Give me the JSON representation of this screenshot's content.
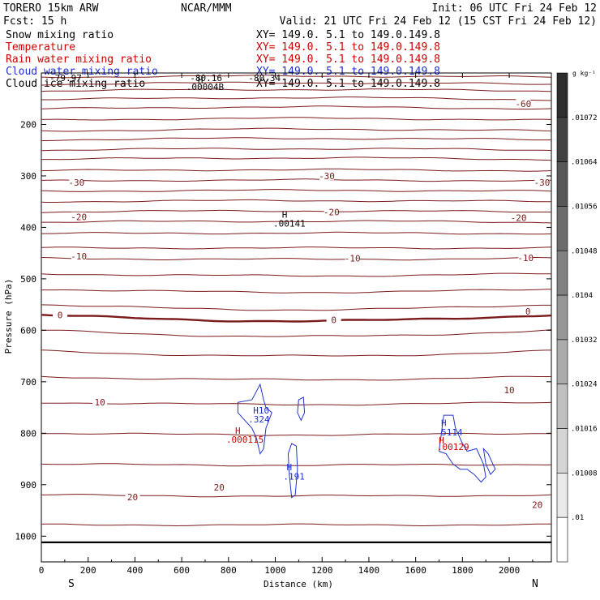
{
  "header": {
    "model": "TORERO  15km ARW",
    "org": "NCAR/MMM",
    "init": "Init: 06 UTC Fri 24 Feb 12",
    "fcst": "Fcst:   15 h",
    "valid": "Valid: 21 UTC Fri 24 Feb 12 (15 CST Fri 24 Feb 12)"
  },
  "fields": [
    {
      "name": "Snow mixing ratio",
      "xy": "XY= 149.0.  5.1 to 149.0.149.8",
      "color": "#000000"
    },
    {
      "name": "Temperature",
      "xy": "XY= 149.0.  5.1 to 149.0.149.8",
      "color": "#cc0000"
    },
    {
      "name": "Rain water mixing ratio",
      "xy": "XY= 149.0.  5.1 to 149.0.149.8",
      "color": "#cc0000"
    },
    {
      "name": "Cloud water mixing ratio",
      "xy": "XY= 149.0.  5.1 to 149.0.149.8",
      "color": "#1f2fd0"
    },
    {
      "name": "Cloud ice mixing ratio",
      "xy": "XY= 149.0.  5.1 to 149.0.149.8",
      "color": "#000000"
    }
  ],
  "chart_data": {
    "type": "cross-section contour",
    "xlabel": "Distance (km)",
    "ylabel": "Pressure (hPa)",
    "xlim": [
      0,
      2180
    ],
    "ylim": [
      1050,
      100
    ],
    "x_ticks": [
      0,
      200,
      400,
      600,
      800,
      1000,
      1200,
      1400,
      1600,
      1800,
      2000
    ],
    "y_ticks": [
      200,
      300,
      400,
      500,
      600,
      700,
      800,
      900,
      1000
    ],
    "direction_labels": {
      "left": "S",
      "right": "N"
    },
    "surface_pressure": 1012,
    "temperature_contours": [
      {
        "p0": 108,
        "amp": -2,
        "label": ""
      },
      {
        "p0": 122,
        "amp": -3,
        "label": ""
      },
      {
        "p0": 135,
        "amp": -3,
        "label": ""
      },
      {
        "p0": 152,
        "amp": -4,
        "label": ""
      },
      {
        "p0": 170,
        "amp": -4,
        "label": "-60"
      },
      {
        "p0": 192,
        "amp": -4,
        "label": ""
      },
      {
        "p0": 213,
        "amp": -4,
        "label": ""
      },
      {
        "p0": 230,
        "amp": -3,
        "label": ""
      },
      {
        "p0": 250,
        "amp": -3,
        "label": ""
      },
      {
        "p0": 268,
        "amp": -3,
        "label": ""
      },
      {
        "p0": 290,
        "amp": -2,
        "label": ""
      },
      {
        "p0": 310,
        "amp": -2,
        "label": "-30"
      },
      {
        "p0": 330,
        "amp": -2,
        "label": ""
      },
      {
        "p0": 350,
        "amp": -2,
        "label": ""
      },
      {
        "p0": 370,
        "amp": -2,
        "label": "-20"
      },
      {
        "p0": 390,
        "amp": -2,
        "label": ""
      },
      {
        "p0": 412,
        "amp": -1,
        "label": ""
      },
      {
        "p0": 440,
        "amp": 0,
        "label": ""
      },
      {
        "p0": 460,
        "amp": 2,
        "label": "-10"
      },
      {
        "p0": 490,
        "amp": 4,
        "label": ""
      },
      {
        "p0": 520,
        "amp": 6,
        "label": ""
      },
      {
        "p0": 550,
        "amp": 10,
        "label": ""
      },
      {
        "p0": 570,
        "amp": 12,
        "label": "0",
        "bold": true
      },
      {
        "p0": 600,
        "amp": 12,
        "label": ""
      },
      {
        "p0": 640,
        "amp": 10,
        "label": ""
      },
      {
        "p0": 690,
        "amp": 6,
        "label": ""
      },
      {
        "p0": 740,
        "amp": 4,
        "label": "10"
      },
      {
        "p0": 800,
        "amp": 3,
        "label": ""
      },
      {
        "p0": 860,
        "amp": 2,
        "label": ""
      },
      {
        "p0": 920,
        "amp": 2,
        "label": "20"
      },
      {
        "p0": 978,
        "amp": 0,
        "label": ""
      }
    ],
    "contour_labels": [
      {
        "x": 80,
        "p": 570,
        "text": "0"
      },
      {
        "x": 1250,
        "p": 580,
        "text": "0"
      },
      {
        "x": 2080,
        "p": 563,
        "text": "0"
      },
      {
        "x": 150,
        "p": 313,
        "text": "-30"
      },
      {
        "x": 1220,
        "p": 300,
        "text": "-30"
      },
      {
        "x": 2140,
        "p": 313,
        "text": "-30"
      },
      {
        "x": 160,
        "p": 380,
        "text": "-20"
      },
      {
        "x": 1240,
        "p": 370,
        "text": "-20"
      },
      {
        "x": 2040,
        "p": 381,
        "text": "-20"
      },
      {
        "x": 160,
        "p": 456,
        "text": "-10"
      },
      {
        "x": 1330,
        "p": 460,
        "text": "-10"
      },
      {
        "x": 2070,
        "p": 459,
        "text": "-10"
      },
      {
        "x": 250,
        "p": 740,
        "text": "10"
      },
      {
        "x": 2000,
        "p": 716,
        "text": "10"
      },
      {
        "x": 390,
        "p": 924,
        "text": "20"
      },
      {
        "x": 760,
        "p": 905,
        "text": "20"
      },
      {
        "x": 2120,
        "p": 939,
        "text": "20"
      },
      {
        "x": 2060,
        "p": 160,
        "text": "-60"
      }
    ],
    "top_labels": [
      {
        "x": 0,
        "p": 100,
        "text": "-79.97"
      },
      {
        "x": 600,
        "p": 100,
        "text": "-80.16"
      },
      {
        "x": 850,
        "p": 100,
        "text": "-80.34"
      }
    ],
    "extrema": [
      {
        "x": 940,
        "p": 755,
        "mark": "H",
        "value": "10",
        "color": "#1f2fd0"
      },
      {
        "x": 930,
        "p": 773,
        "mark": "",
        "value": ".324",
        "color": "#1f2fd0"
      },
      {
        "x": 840,
        "p": 795,
        "mark": "H",
        "value": "",
        "color": "#cc0000"
      },
      {
        "x": 870,
        "p": 812,
        "mark": "",
        "value": ".000115",
        "color": "#cc0000"
      },
      {
        "x": 1060,
        "p": 866,
        "mark": "H",
        "value": "",
        "color": "#1f2fd0"
      },
      {
        "x": 1080,
        "p": 884,
        "mark": "",
        "value": ".191",
        "color": "#1f2fd0"
      },
      {
        "x": 1720,
        "p": 780,
        "mark": "H",
        "value": "",
        "color": "#1f2fd0"
      },
      {
        "x": 1755,
        "p": 798,
        "mark": "",
        "value": "5114",
        "color": "#1f2fd0"
      },
      {
        "x": 1710,
        "p": 814,
        "mark": "H",
        "value": "",
        "color": "#cc0000"
      },
      {
        "x": 1760,
        "p": 826,
        "mark": "",
        "value": ".00129",
        "color": "#cc0000"
      },
      {
        "x": 1040,
        "p": 375,
        "mark": "H",
        "value": "",
        "color": "#000000"
      },
      {
        "x": 1060,
        "p": 392,
        "mark": "",
        "value": ".00141",
        "color": "#000000"
      },
      {
        "x": 680,
        "p": 113,
        "mark": "H",
        "value": "",
        "color": "#000000"
      },
      {
        "x": 700,
        "p": 127,
        "mark": "",
        "value": ".00004B",
        "color": "#000000"
      }
    ],
    "colorbar": {
      "unit": "g kg⁻¹",
      "levels": [
        ".01",
        ".01008",
        ".01016",
        ".01024",
        ".01032",
        ".0104",
        ".01048",
        ".01056",
        ".01064",
        ".01072"
      ]
    }
  }
}
